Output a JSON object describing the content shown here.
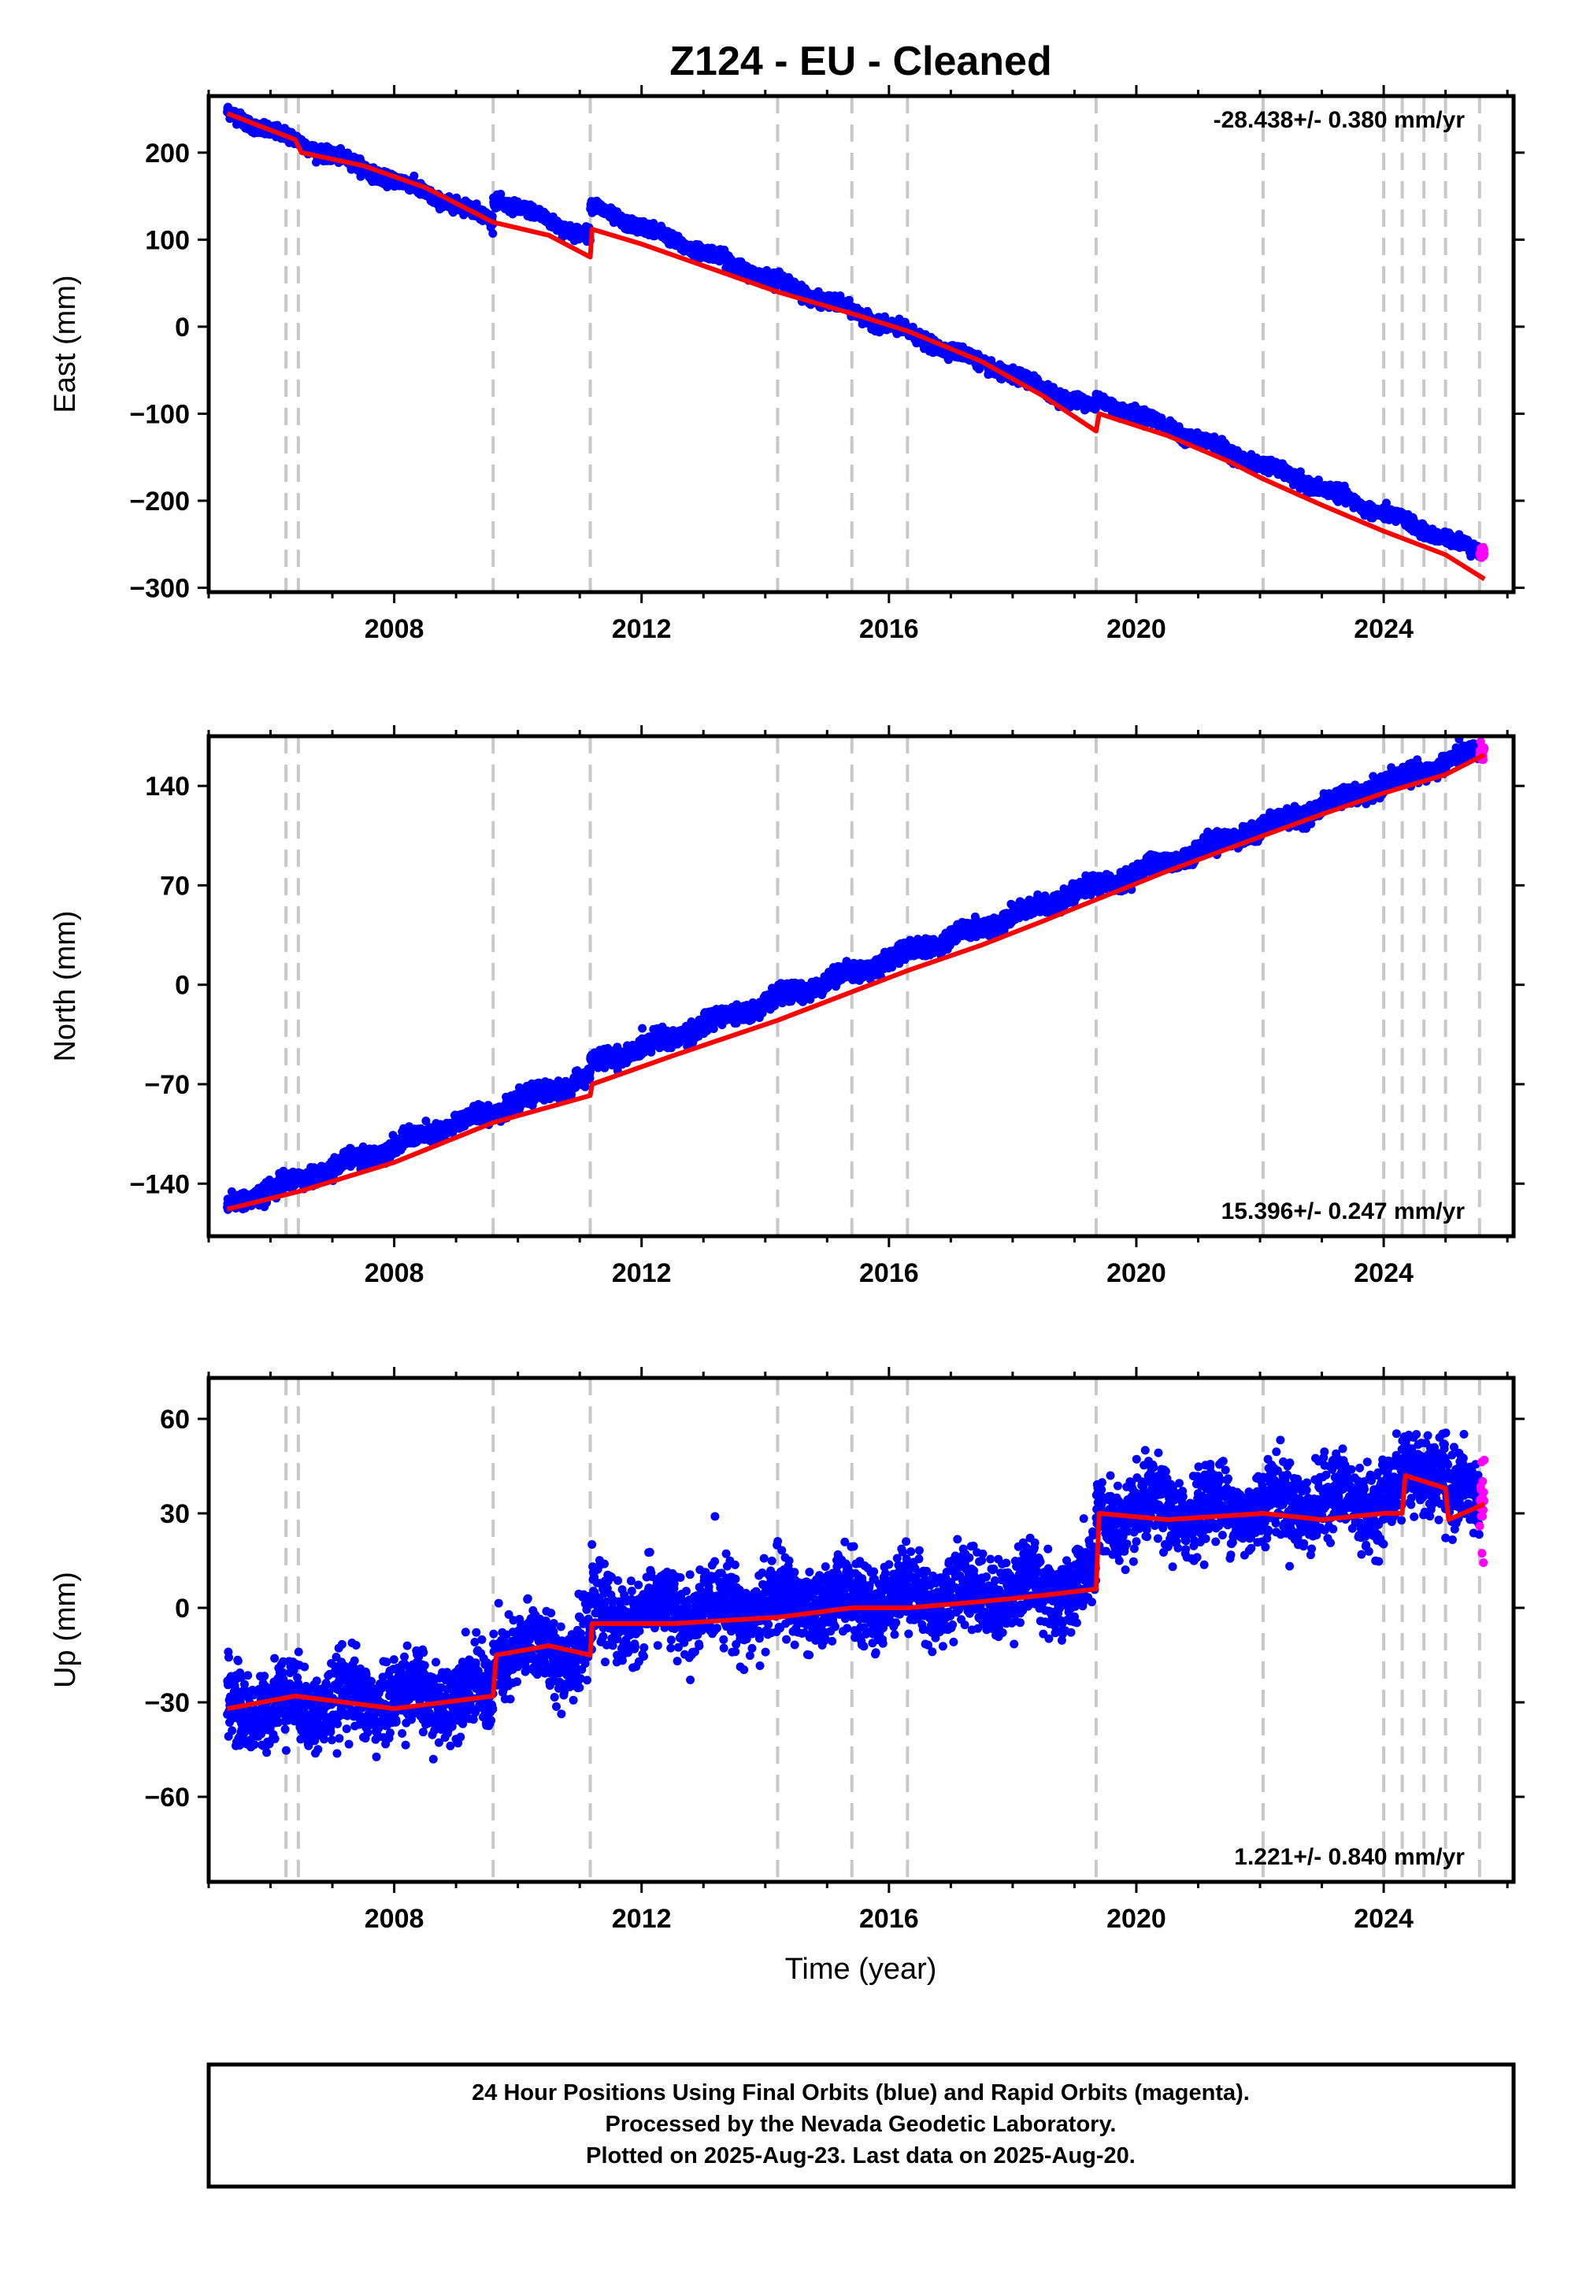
{
  "title": "Z124  - EU - Cleaned",
  "xlabel": "Time (year)",
  "caption": [
    "24 Hour Positions Using Final Orbits (blue) and Rapid Orbits (magenta).",
    "Processed by the Nevada Geodetic Laboratory.",
    "Plotted on 2025-Aug-23. Last data on 2025-Aug-20."
  ],
  "colors": {
    "final": "#0000ff",
    "rapid": "#ff00ff",
    "model": "#ff0000",
    "steps": "#c8c8c8",
    "frame": "#000000"
  },
  "chart_data": [
    {
      "type": "scatter",
      "panel": "east",
      "ylabel": "East (mm)",
      "rate": "-28.438+/- 0.380 mm/yr",
      "rate_position": "top-right",
      "xlim": [
        2005.0,
        2026.1
      ],
      "ylim": [
        -305,
        265
      ],
      "xticks": [
        2008,
        2012,
        2016,
        2020,
        2024
      ],
      "yticks": [
        -300,
        -200,
        -100,
        0,
        100,
        200
      ],
      "ytick_labels": [
        "−300",
        "−200",
        "−100",
        "0",
        "100",
        "200"
      ],
      "step_epochs": [
        2006.25,
        2006.45,
        2009.6,
        2011.17,
        2014.2,
        2015.4,
        2016.3,
        2019.35,
        2022.05,
        2024.0,
        2024.3,
        2024.65,
        2025.0,
        2025.55
      ],
      "start": 2005.3,
      "end": 2025.63,
      "rapid_start": 2025.55,
      "trend": {
        "t0": 2005.3,
        "v0": 245,
        "rate": -28.438
      },
      "offsets": [
        [
          2009.6,
          25
        ],
        [
          2011.17,
          35
        ],
        [
          2019.35,
          12
        ]
      ],
      "annual_amp": 3,
      "noise": 3.5,
      "model": [
        [
          2005.3,
          245
        ],
        [
          2006.4,
          215
        ],
        [
          2006.5,
          200
        ],
        [
          2007.5,
          185
        ],
        [
          2008.5,
          160
        ],
        [
          2009.6,
          120
        ],
        [
          2010.5,
          105
        ],
        [
          2011.17,
          80
        ],
        [
          2011.2,
          112
        ],
        [
          2012.0,
          95
        ],
        [
          2013.0,
          70
        ],
        [
          2014.2,
          40
        ],
        [
          2015.4,
          15
        ],
        [
          2016.3,
          -5
        ],
        [
          2017.5,
          -40
        ],
        [
          2018.5,
          -80
        ],
        [
          2019.35,
          -120
        ],
        [
          2019.4,
          -100
        ],
        [
          2020.5,
          -125
        ],
        [
          2021.5,
          -155
        ],
        [
          2022.05,
          -175
        ],
        [
          2023.0,
          -205
        ],
        [
          2024.0,
          -235
        ],
        [
          2025.0,
          -262
        ],
        [
          2025.63,
          -290
        ]
      ]
    },
    {
      "type": "scatter",
      "panel": "north",
      "ylabel": "North (mm)",
      "rate": "15.396+/- 0.247 mm/yr",
      "rate_position": "bottom-right",
      "xlim": [
        2005.0,
        2026.1
      ],
      "ylim": [
        -177,
        175
      ],
      "xticks": [
        2008,
        2012,
        2016,
        2020,
        2024
      ],
      "yticks": [
        -140,
        -70,
        0,
        70,
        140
      ],
      "ytick_labels": [
        "−140",
        "−70",
        "0",
        "70",
        "140"
      ],
      "step_epochs": [
        2006.25,
        2006.45,
        2009.6,
        2011.17,
        2014.2,
        2015.4,
        2016.3,
        2019.35,
        2022.05,
        2024.0,
        2024.3,
        2024.65,
        2025.0,
        2025.55
      ],
      "start": 2005.3,
      "end": 2025.63,
      "rapid_start": 2025.55,
      "trend": {
        "t0": 2005.3,
        "v0": -155,
        "rate": 15.396
      },
      "offsets": [
        [
          2011.17,
          8
        ]
      ],
      "annual_amp": 2.5,
      "noise": 3,
      "model": [
        [
          2005.3,
          -158
        ],
        [
          2006.5,
          -145
        ],
        [
          2008.0,
          -125
        ],
        [
          2009.6,
          -97
        ],
        [
          2011.17,
          -78
        ],
        [
          2011.2,
          -70
        ],
        [
          2012.5,
          -50
        ],
        [
          2014.2,
          -25
        ],
        [
          2015.4,
          -5
        ],
        [
          2016.3,
          10
        ],
        [
          2017.5,
          28
        ],
        [
          2018.5,
          45
        ],
        [
          2019.35,
          60
        ],
        [
          2020.5,
          80
        ],
        [
          2022.05,
          105
        ],
        [
          2023.0,
          120
        ],
        [
          2024.0,
          135
        ],
        [
          2025.0,
          148
        ],
        [
          2025.63,
          162
        ]
      ]
    },
    {
      "type": "scatter",
      "panel": "up",
      "ylabel": "Up (mm)",
      "rate": "1.221+/- 0.840 mm/yr",
      "rate_position": "bottom-right",
      "xlim": [
        2005.0,
        2026.1
      ],
      "ylim": [
        -87,
        73
      ],
      "xticks": [
        2008,
        2012,
        2016,
        2020,
        2024
      ],
      "yticks": [
        -60,
        -30,
        0,
        30,
        60
      ],
      "ytick_labels": [
        "−60",
        "−30",
        "0",
        "30",
        "60"
      ],
      "step_epochs": [
        2006.25,
        2006.45,
        2009.6,
        2011.17,
        2014.2,
        2015.4,
        2016.3,
        2019.35,
        2022.05,
        2024.0,
        2024.3,
        2024.65,
        2025.0,
        2025.55
      ],
      "start": 2005.3,
      "end": 2025.63,
      "rapid_start": 2025.55,
      "trend": {
        "t0": 2005.3,
        "v0": -32,
        "rate": 1.221
      },
      "offsets": [
        [
          2009.6,
          12
        ],
        [
          2011.17,
          10
        ],
        [
          2019.35,
          22
        ],
        [
          2024.3,
          8
        ],
        [
          2025.0,
          -10
        ]
      ],
      "annual_amp": 4,
      "noise": 6,
      "model": [
        [
          2005.3,
          -32
        ],
        [
          2006.4,
          -28
        ],
        [
          2008.0,
          -32
        ],
        [
          2009.6,
          -28
        ],
        [
          2009.65,
          -15
        ],
        [
          2010.5,
          -12
        ],
        [
          2011.17,
          -15
        ],
        [
          2011.2,
          -5
        ],
        [
          2012.5,
          -5
        ],
        [
          2014.2,
          -3
        ],
        [
          2015.4,
          0
        ],
        [
          2016.3,
          0
        ],
        [
          2017.5,
          2
        ],
        [
          2018.5,
          4
        ],
        [
          2019.35,
          6
        ],
        [
          2019.4,
          30
        ],
        [
          2020.5,
          28
        ],
        [
          2022.05,
          30
        ],
        [
          2023.0,
          28
        ],
        [
          2024.0,
          30
        ],
        [
          2024.3,
          30
        ],
        [
          2024.35,
          42
        ],
        [
          2025.0,
          38
        ],
        [
          2025.05,
          28
        ],
        [
          2025.63,
          33
        ]
      ]
    }
  ]
}
